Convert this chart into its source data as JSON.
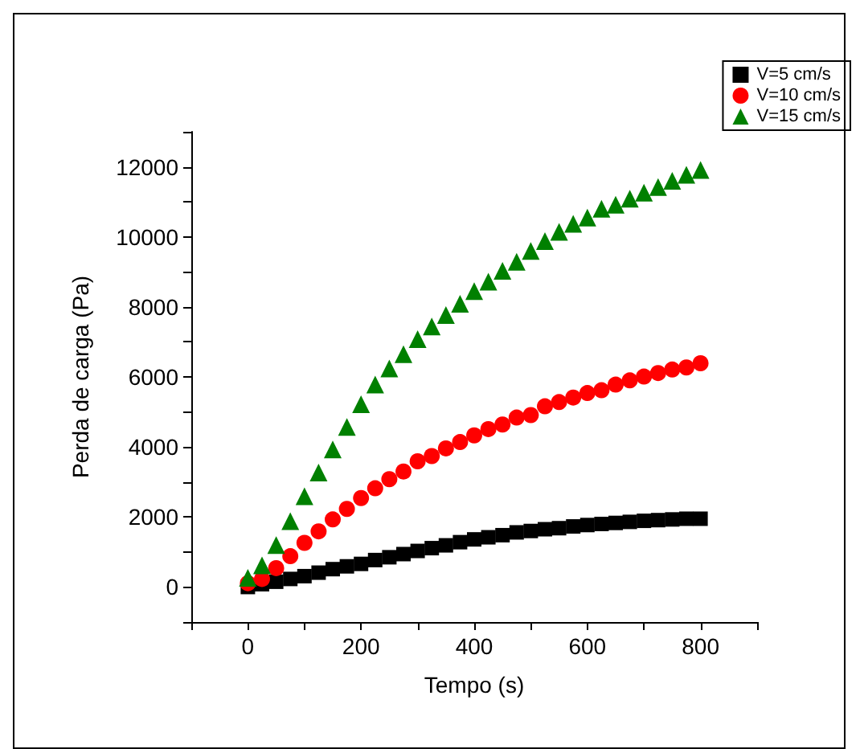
{
  "chart_data": {
    "type": "scatter",
    "xlabel": "Tempo (s)",
    "ylabel": "Perda de carga (Pa)",
    "x": [
      0,
      25,
      50,
      75,
      100,
      125,
      150,
      175,
      200,
      225,
      250,
      275,
      300,
      325,
      350,
      375,
      400,
      425,
      450,
      475,
      500,
      525,
      550,
      575,
      600,
      625,
      650,
      675,
      700,
      725,
      750,
      775,
      800
    ],
    "series": [
      {
        "name": "V=5 cm/s",
        "color": "#000000",
        "marker": "square",
        "values": [
          0,
          80,
          150,
          230,
          310,
          410,
          510,
          590,
          660,
          770,
          850,
          940,
          1030,
          1110,
          1190,
          1280,
          1360,
          1420,
          1480,
          1560,
          1600,
          1650,
          1680,
          1730,
          1770,
          1800,
          1830,
          1860,
          1890,
          1910,
          1930,
          1950,
          1950
        ]
      },
      {
        "name": "V=10 cm/s",
        "color": "#ff0000",
        "marker": "circle",
        "values": [
          110,
          230,
          540,
          880,
          1260,
          1590,
          1930,
          2230,
          2540,
          2820,
          3080,
          3300,
          3590,
          3740,
          3960,
          4140,
          4330,
          4510,
          4640,
          4840,
          4910,
          5160,
          5280,
          5410,
          5540,
          5620,
          5780,
          5900,
          6010,
          6110,
          6210,
          6270,
          6390
        ]
      },
      {
        "name": "V=15 cm/s",
        "color": "#008000",
        "marker": "triangle",
        "values": [
          260,
          620,
          1200,
          1880,
          2590,
          3270,
          3930,
          4570,
          5220,
          5780,
          6240,
          6650,
          7080,
          7440,
          7770,
          8090,
          8450,
          8720,
          9030,
          9290,
          9600,
          9880,
          10140,
          10370,
          10550,
          10800,
          10920,
          11090,
          11260,
          11420,
          11600,
          11770,
          11910
        ]
      }
    ],
    "xlim": [
      -100,
      900
    ],
    "xticks": [
      {
        "value": -100,
        "label": null
      },
      0,
      {
        "value": 100,
        "label": null
      },
      200,
      {
        "value": 300,
        "label": null
      },
      400,
      {
        "value": 500,
        "label": null
      },
      600,
      {
        "value": 700,
        "label": null
      },
      800,
      {
        "value": 900,
        "label": null
      }
    ],
    "ylim": [
      -1000,
      13000
    ],
    "yticks": [
      {
        "value": -1000,
        "label": null
      },
      0,
      {
        "value": 1000,
        "label": null
      },
      2000,
      {
        "value": 3000,
        "label": null
      },
      4000,
      {
        "value": 5000,
        "label": null
      },
      6000,
      {
        "value": 7000,
        "label": null
      },
      8000,
      {
        "value": 9000,
        "label": null
      },
      10000,
      {
        "value": 11000,
        "label": null
      },
      12000,
      {
        "value": 13000,
        "label": null
      }
    ],
    "grid": false,
    "legend": "top right"
  }
}
